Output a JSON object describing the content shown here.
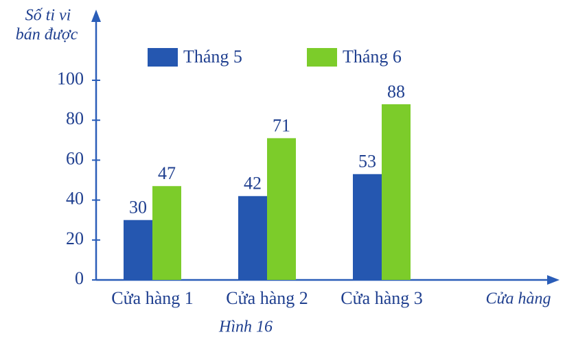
{
  "chart_data": {
    "type": "bar",
    "caption": "Hình 16",
    "y_label_lines": [
      "Số ti vi",
      "bán được"
    ],
    "x_label": "Cửa hàng",
    "categories": [
      "Cửa hàng 1",
      "Cửa hàng 2",
      "Cửa hàng 3"
    ],
    "series": [
      {
        "name": "Tháng 5",
        "color": "#2557b0",
        "values": [
          30,
          42,
          53
        ]
      },
      {
        "name": "Tháng 6",
        "color": "#7ccc2a",
        "values": [
          47,
          71,
          88
        ]
      }
    ],
    "ylim": [
      0,
      100
    ],
    "yticks": [
      0,
      20,
      40,
      60,
      80,
      100
    ],
    "grid": false,
    "legend": "top"
  }
}
